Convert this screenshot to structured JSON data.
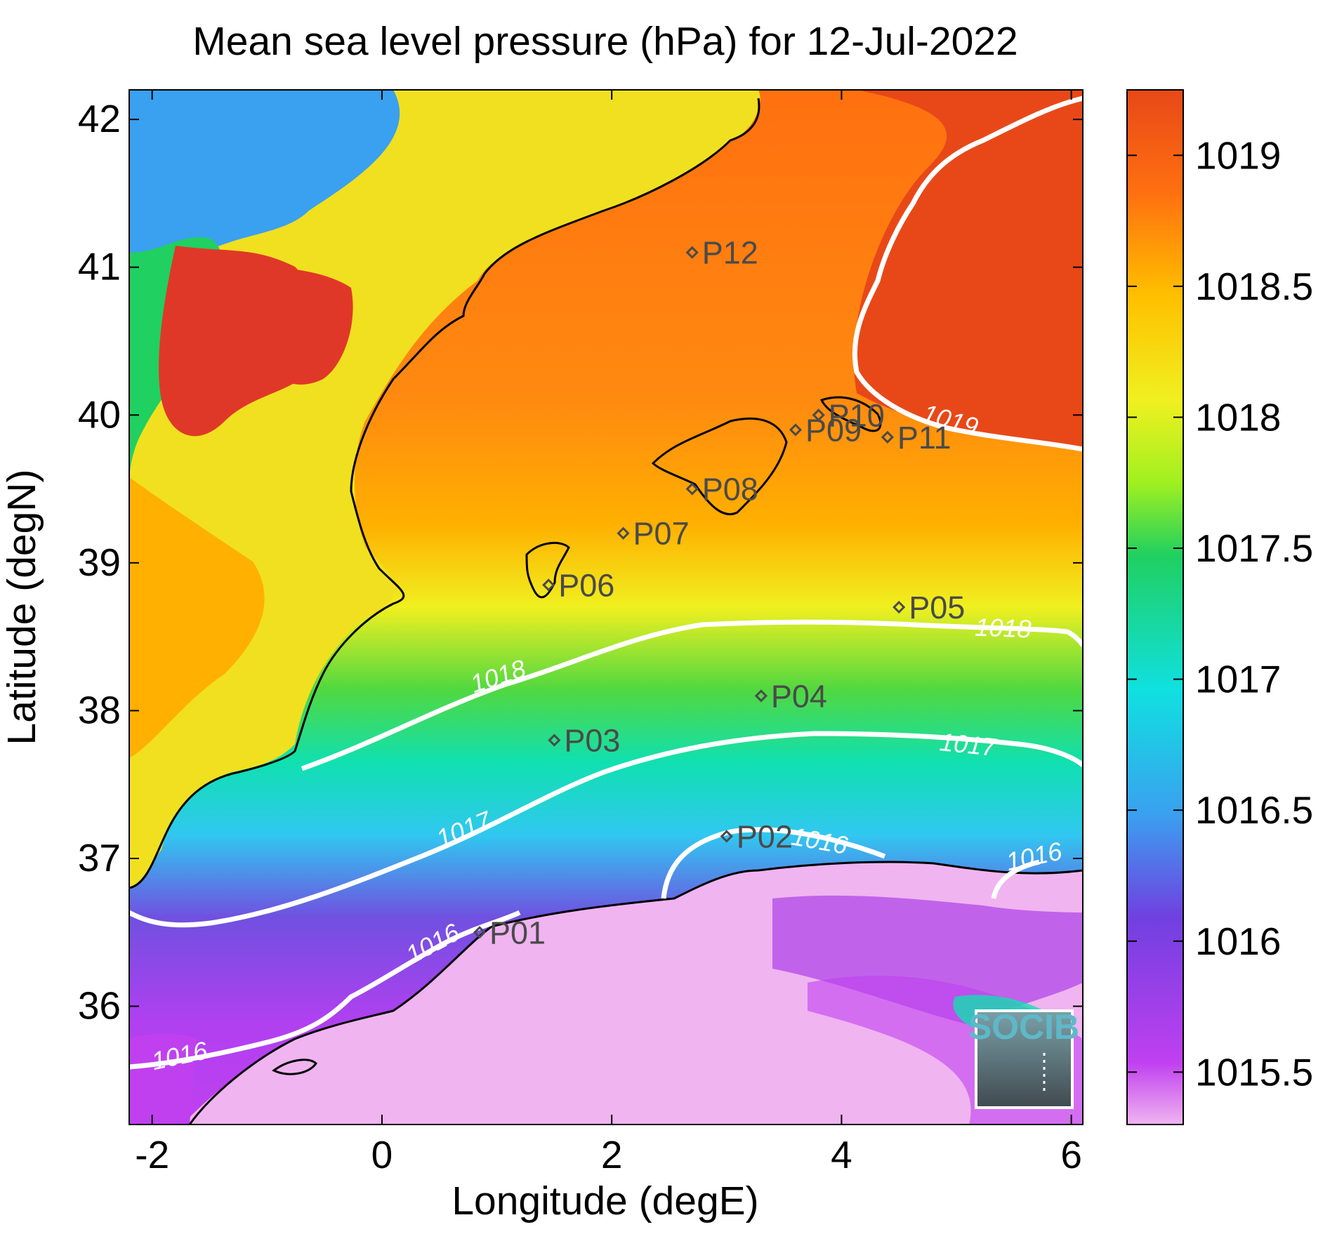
{
  "title": "Mean sea level pressure (hPa) for 12-Jul-2022",
  "xlabel": "Longitude (degE)",
  "ylabel": "Latitude (degN)",
  "x_ticks": [
    "-2",
    "0",
    "2",
    "4",
    "6"
  ],
  "y_ticks": [
    "36",
    "37",
    "38",
    "39",
    "40",
    "41",
    "42"
  ],
  "colorbar": {
    "ticks": [
      "1015.5",
      "1016",
      "1016.5",
      "1017",
      "1017.5",
      "1018",
      "1018.5",
      "1019"
    ],
    "colors": [
      "#f0b4f0",
      "#c040f0",
      "#7040e0",
      "#3aa0f0",
      "#10e0e0",
      "#20d060",
      "#a0f020",
      "#f0f020",
      "#ffc000",
      "#ff7010",
      "#e84818"
    ]
  },
  "contour_labels": {
    "c1016_a": "1016",
    "c1016_b": "1016",
    "c1016_c": "1016",
    "c1016_d": "1016",
    "c1017_a": "1017",
    "c1017_b": "1017",
    "c1018_a": "1018",
    "c1018_b": "1018",
    "c1019": "1019"
  },
  "logo_text": "SOCIB",
  "chart_data": {
    "type": "heatmap",
    "variable": "Mean sea level pressure",
    "units": "hPa",
    "date": "12-Jul-2022",
    "xlim": [
      -2.2,
      6.1
    ],
    "ylim": [
      35.2,
      42.2
    ],
    "clim": [
      1015.3,
      1019.25
    ],
    "contour_levels": [
      1016,
      1017,
      1018,
      1019
    ],
    "stations": [
      {
        "name": "P01",
        "lon": 0.85,
        "lat": 36.5
      },
      {
        "name": "P02",
        "lon": 3.0,
        "lat": 37.15
      },
      {
        "name": "P03",
        "lon": 1.5,
        "lat": 37.8
      },
      {
        "name": "P04",
        "lon": 3.3,
        "lat": 38.1
      },
      {
        "name": "P05",
        "lon": 4.5,
        "lat": 38.7
      },
      {
        "name": "P06",
        "lon": 1.45,
        "lat": 38.85
      },
      {
        "name": "P07",
        "lon": 2.1,
        "lat": 39.2
      },
      {
        "name": "P08",
        "lon": 2.7,
        "lat": 39.5
      },
      {
        "name": "P09",
        "lon": 3.6,
        "lat": 39.9
      },
      {
        "name": "P10",
        "lon": 3.8,
        "lat": 40.0
      },
      {
        "name": "P11",
        "lon": 4.4,
        "lat": 39.85
      },
      {
        "name": "P12",
        "lon": 2.7,
        "lat": 41.1
      }
    ]
  }
}
